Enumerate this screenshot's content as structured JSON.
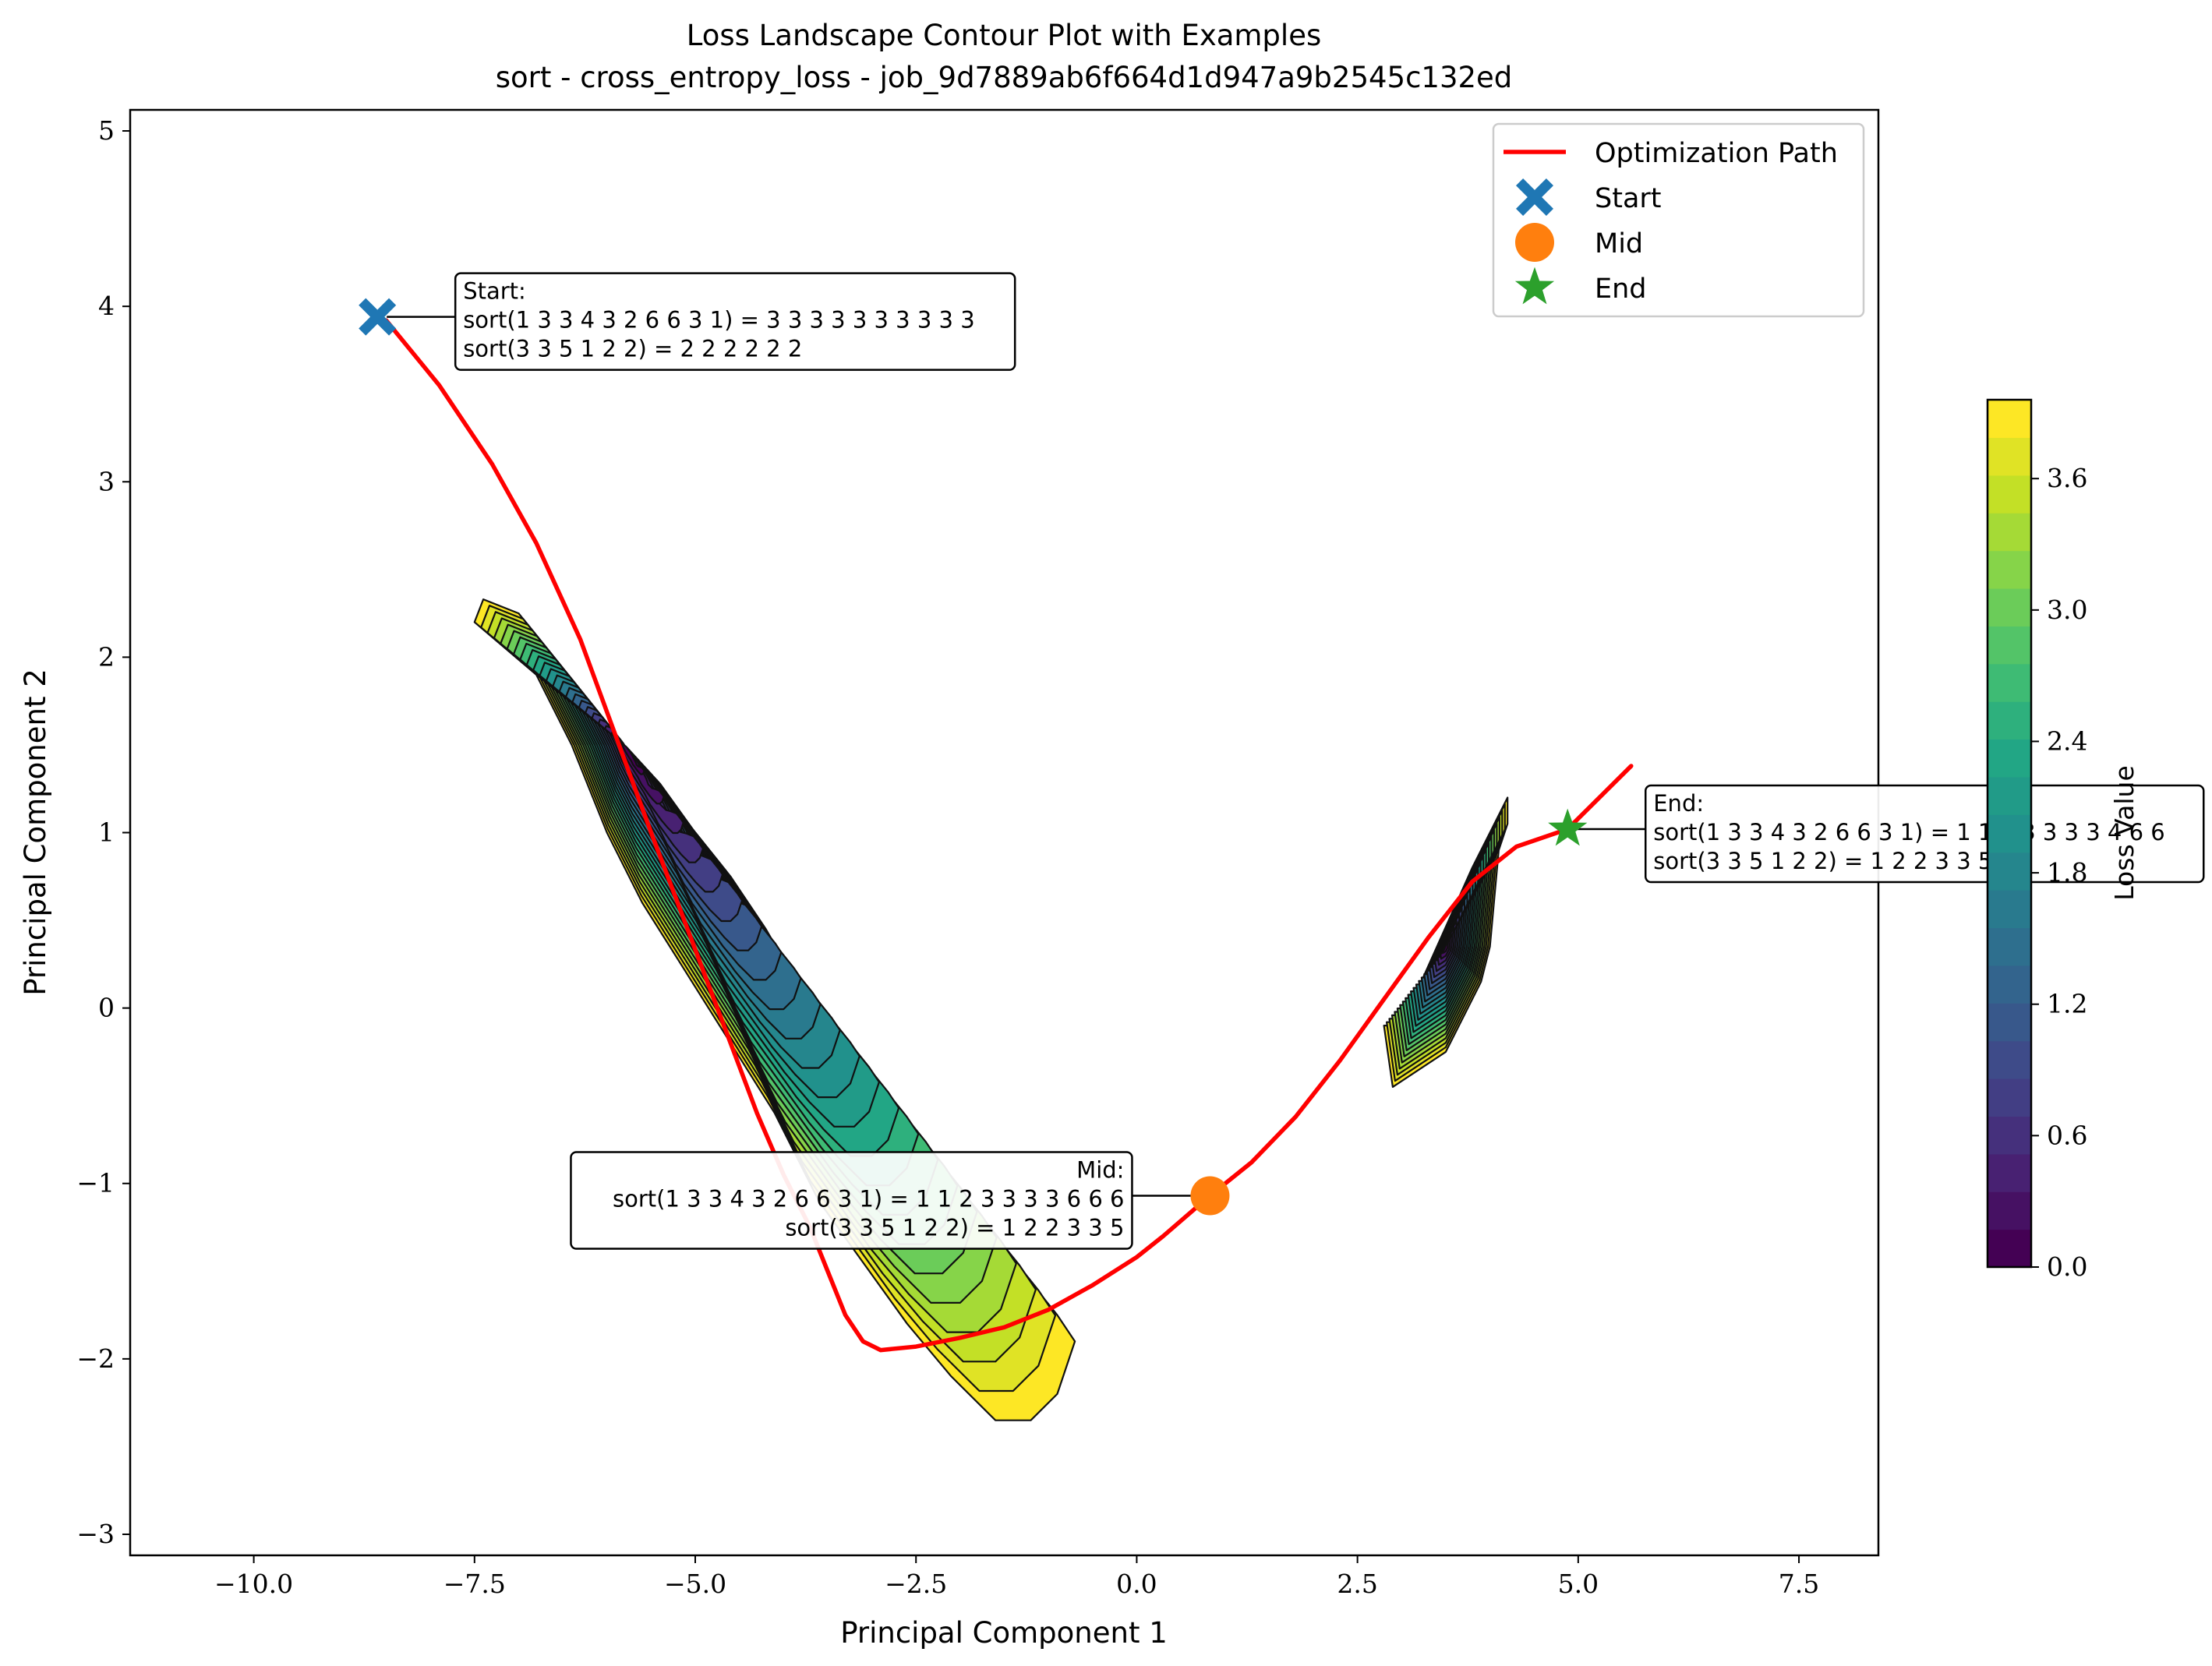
{
  "chart_data": {
    "type": "contour",
    "title": "Loss Landscape Contour Plot with Examples",
    "subtitle": "sort - cross_entropy_loss - job_9d7889ab6f664d1d947a9b2545c132ed",
    "xlabel": "Principal Component 1",
    "ylabel": "Principal Component 2",
    "xlim": [
      -11.4,
      8.4
    ],
    "ylim": [
      -3.12,
      5.12
    ],
    "xticks": [
      -10.0,
      -7.5,
      -5.0,
      -2.5,
      0.0,
      2.5,
      5.0,
      7.5
    ],
    "xtick_labels": [
      "−10.0",
      "−7.5",
      "−5.0",
      "−2.5",
      "0.0",
      "2.5",
      "5.0",
      "7.5"
    ],
    "yticks": [
      -3,
      -2,
      -1,
      0,
      1,
      2,
      3,
      4,
      5
    ],
    "ytick_labels": [
      "−3",
      "−2",
      "−1",
      "0",
      "1",
      "2",
      "3",
      "4",
      "5"
    ],
    "grid": false,
    "legend_position": "top-right",
    "legend": [
      {
        "label": "Optimization Path",
        "marker": "line",
        "color": "#ff0000"
      },
      {
        "label": "Start",
        "marker": "X",
        "color": "#1f77b4"
      },
      {
        "label": "Mid",
        "marker": "o",
        "color": "#ff7f0e"
      },
      {
        "label": "End",
        "marker": "*",
        "color": "#2ca02c"
      }
    ],
    "colorbar": {
      "label": "Loss Value",
      "cmap": "viridis",
      "range": [
        0.0,
        3.96
      ],
      "levels": 23,
      "ticks": [
        0.0,
        0.6,
        1.2,
        1.8,
        2.4,
        3.0,
        3.6
      ],
      "tick_labels": [
        "0.0",
        "0.6",
        "1.2",
        "1.8",
        "2.4",
        "3.0",
        "3.6"
      ]
    },
    "contour_regions": [
      {
        "name": "left diagonal band",
        "outline": [
          [
            -7.4,
            2.33
          ],
          [
            -7.0,
            2.25
          ],
          [
            -6.6,
            2.0
          ],
          [
            -6.2,
            1.75
          ],
          [
            -5.8,
            1.42
          ],
          [
            -5.4,
            1.28
          ],
          [
            -5.0,
            1.0
          ],
          [
            -4.6,
            0.75
          ],
          [
            -4.2,
            0.45
          ],
          [
            -3.8,
            0.1
          ],
          [
            -3.4,
            -0.3
          ],
          [
            -3.0,
            -0.7
          ],
          [
            -2.7,
            -1.1
          ],
          [
            -2.2,
            -1.35
          ],
          [
            -1.8,
            -1.4
          ],
          [
            -1.3,
            -1.5
          ],
          [
            -0.9,
            -1.75
          ],
          [
            -0.7,
            -1.9
          ],
          [
            -0.9,
            -2.2
          ],
          [
            -1.2,
            -2.35
          ],
          [
            -1.6,
            -2.35
          ],
          [
            -2.1,
            -2.1
          ],
          [
            -2.6,
            -1.8
          ],
          [
            -3.1,
            -1.45
          ],
          [
            -3.6,
            -1.1
          ],
          [
            -4.1,
            -0.6
          ],
          [
            -4.6,
            -0.2
          ],
          [
            -5.1,
            0.2
          ],
          [
            -5.6,
            0.6
          ],
          [
            -6.0,
            1.0
          ],
          [
            -6.4,
            1.5
          ],
          [
            -6.8,
            1.9
          ],
          [
            -7.5,
            2.2
          ]
        ],
        "minimum": [
          -5.8,
          1.5
        ]
      },
      {
        "name": "right narrow band",
        "outline": [
          [
            3.0,
            -0.1
          ],
          [
            3.4,
            0.35
          ],
          [
            3.8,
            0.8
          ],
          [
            4.0,
            1.0
          ],
          [
            4.2,
            1.2
          ],
          [
            4.2,
            1.05
          ],
          [
            4.1,
            0.9
          ],
          [
            4.0,
            0.35
          ],
          [
            3.9,
            0.15
          ],
          [
            3.5,
            -0.25
          ],
          [
            3.2,
            -0.35
          ],
          [
            2.9,
            -0.45
          ],
          [
            2.8,
            -0.1
          ]
        ],
        "minimum": [
          3.5,
          0.35
        ]
      }
    ],
    "series": [
      {
        "name": "Optimization Path",
        "type": "line",
        "color": "#ff0000",
        "points": [
          [
            -8.5,
            3.92
          ],
          [
            -7.9,
            3.55
          ],
          [
            -7.3,
            3.1
          ],
          [
            -6.8,
            2.65
          ],
          [
            -6.3,
            2.1
          ],
          [
            -5.9,
            1.55
          ],
          [
            -5.5,
            1.0
          ],
          [
            -5.2,
            0.6
          ],
          [
            -4.9,
            0.2
          ],
          [
            -4.6,
            -0.2
          ],
          [
            -4.3,
            -0.6
          ],
          [
            -4.0,
            -0.95
          ],
          [
            -3.7,
            -1.25
          ],
          [
            -3.5,
            -1.5
          ],
          [
            -3.3,
            -1.75
          ],
          [
            -3.1,
            -1.9
          ],
          [
            -2.9,
            -1.95
          ],
          [
            -2.5,
            -1.93
          ],
          [
            -2.0,
            -1.88
          ],
          [
            -1.5,
            -1.82
          ],
          [
            -1.0,
            -1.72
          ],
          [
            -0.5,
            -1.58
          ],
          [
            0.0,
            -1.42
          ],
          [
            0.3,
            -1.3
          ],
          [
            0.83,
            -1.07
          ],
          [
            1.3,
            -0.88
          ],
          [
            1.8,
            -0.62
          ],
          [
            2.3,
            -0.3
          ],
          [
            2.8,
            0.05
          ],
          [
            3.3,
            0.4
          ],
          [
            3.8,
            0.72
          ],
          [
            4.3,
            0.92
          ],
          [
            4.88,
            1.02
          ],
          [
            5.2,
            1.18
          ],
          [
            5.6,
            1.38
          ]
        ]
      },
      {
        "name": "Start",
        "type": "scatter",
        "marker": "X",
        "color": "#1f77b4",
        "points": [
          [
            -8.6,
            3.94
          ]
        ]
      },
      {
        "name": "Mid",
        "type": "scatter",
        "marker": "o",
        "color": "#ff7f0e",
        "points": [
          [
            0.83,
            -1.07
          ]
        ]
      },
      {
        "name": "End",
        "type": "scatter",
        "marker": "*",
        "color": "#2ca02c",
        "points": [
          [
            4.88,
            1.02
          ]
        ]
      }
    ],
    "annotations": [
      {
        "name": "start",
        "anchor": [
          -8.6,
          3.94
        ],
        "text_position": "right",
        "align": "left",
        "lines": [
          "Start:",
          "sort(1 3 3 4 3 2 6 6 3 1) = 3 3 3 3 3 3 3 3 3 3",
          "sort(3 3 5 1 2 2) = 2 2 2 2 2 2"
        ]
      },
      {
        "name": "mid",
        "anchor": [
          0.83,
          -1.07
        ],
        "text_position": "left",
        "align": "right",
        "lines": [
          "Mid:",
          "sort(1 3 3 4 3 2 6 6 3 1) = 1 1 2 3 3 3 3 6 6 6",
          "sort(3 3 5 1 2 2) = 1 2 2 3 3 5"
        ]
      },
      {
        "name": "end",
        "anchor": [
          4.88,
          1.02
        ],
        "text_position": "right",
        "align": "left",
        "lines": [
          "End:",
          "sort(1 3 3 4 3 2 6 6 3 1) = 1 1 2 3 3 3 3 4 6 6",
          "sort(3 3 5 1 2 2) = 1 2 2 3 3 5"
        ]
      }
    ]
  }
}
